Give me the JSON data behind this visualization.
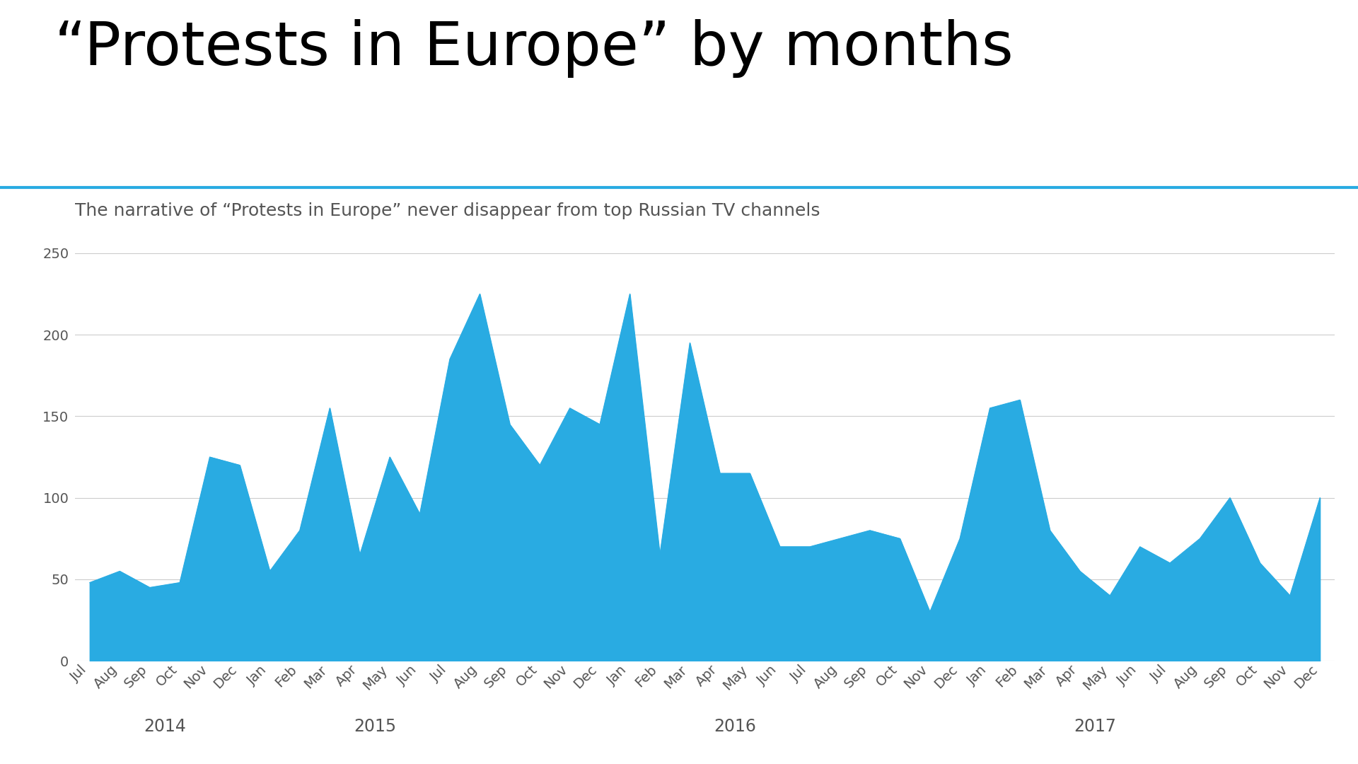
{
  "title": "“Protests in Europe” by months",
  "subtitle": "The narrative of “Protests in Europe” never disappear from top Russian TV channels",
  "fill_color": "#29ABE2",
  "title_color": "#000000",
  "subtitle_color": "#555555",
  "background_color": "#FFFFFF",
  "grid_color": "#CCCCCC",
  "divider_color": "#29ABE2",
  "ylim": [
    0,
    260
  ],
  "yticks": [
    0,
    50,
    100,
    150,
    200,
    250
  ],
  "months": [
    "Jul",
    "Aug",
    "Sep",
    "Oct",
    "Nov",
    "Dec",
    "Jan",
    "Feb",
    "Mar",
    "Apr",
    "May",
    "Jun",
    "Jul",
    "Aug",
    "Sep",
    "Oct",
    "Nov",
    "Dec",
    "Jan",
    "Feb",
    "Mar",
    "Apr",
    "May",
    "Jun",
    "Jul",
    "Aug",
    "Sep",
    "Oct",
    "Nov",
    "Dec",
    "Jan",
    "Feb",
    "Mar",
    "Apr",
    "May",
    "Jun",
    "Jul",
    "Aug",
    "Sep",
    "Oct",
    "Nov",
    "Dec"
  ],
  "values": [
    48,
    55,
    45,
    48,
    125,
    120,
    55,
    80,
    155,
    65,
    125,
    90,
    185,
    225,
    145,
    120,
    155,
    145,
    225,
    65,
    195,
    115,
    115,
    70,
    70,
    75,
    80,
    75,
    30,
    75,
    155,
    160,
    80,
    55,
    40,
    70,
    60,
    75,
    100,
    60,
    40,
    100
  ],
  "year_labels": [
    {
      "year": "2014",
      "index": 2.5
    },
    {
      "year": "2015",
      "index": 9.5
    },
    {
      "year": "2016",
      "index": 21.5
    },
    {
      "year": "2017",
      "index": 33.5
    }
  ],
  "title_fontsize": 62,
  "subtitle_fontsize": 18,
  "tick_fontsize": 14,
  "year_fontsize": 17
}
